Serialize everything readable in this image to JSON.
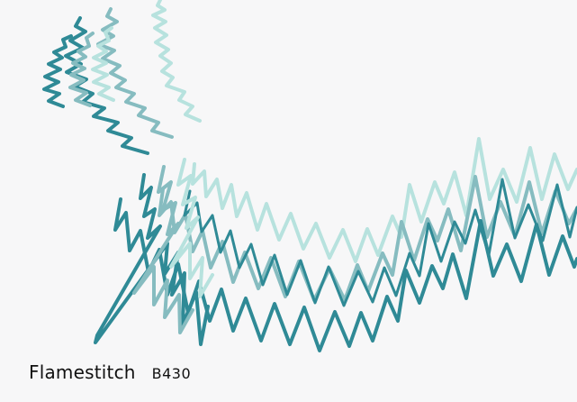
{
  "caption": {
    "name": "Flamestitch",
    "code": "B430"
  },
  "pattern": {
    "name": "flamestitch-pattern",
    "colors": {
      "light": "#b7e2de",
      "mid": "#86bcc0",
      "dark": "#2f8a96",
      "background": "#f7f7f8"
    }
  }
}
